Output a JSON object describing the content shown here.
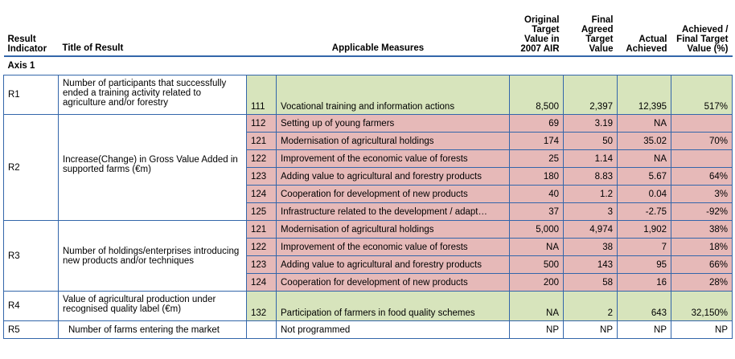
{
  "headers": {
    "result_indicator": "Result Indicator",
    "title_of_result": "Title of Result",
    "applicable_measures": "Applicable Measures",
    "original_target": "Original Target Value in 2007 AIR",
    "final_agreed": "Final Agreed Target Value",
    "actual_achieved": "Actual Achieved",
    "achieved_pct": "Achieved / Final Target Value (%)"
  },
  "axis_label": "Axis 1",
  "groups": [
    {
      "indicator": "R1",
      "title": "Number of participants that successfully ended a training activity related to agriculture and/or forestry",
      "rows": [
        {
          "code": "111",
          "measure": "Vocational training and information actions",
          "original": "8,500",
          "final": "2,397",
          "actual": "12,395",
          "pct": "517%"
        }
      ]
    },
    {
      "indicator": "R2",
      "title": "Increase(Change) in Gross Value Added in supported farms (€m)",
      "rows": [
        {
          "code": "112",
          "measure": "Setting up of young farmers",
          "original": "69",
          "final": "3.19",
          "actual": "NA",
          "pct": ""
        },
        {
          "code": "121",
          "measure": "Modernisation of agricultural holdings",
          "original": "174",
          "final": "50",
          "actual": "35.02",
          "pct": "70%"
        },
        {
          "code": "122",
          "measure": "Improvement of the economic value of forests",
          "original": "25",
          "final": "1.14",
          "actual": "NA",
          "pct": ""
        },
        {
          "code": "123",
          "measure": "Adding value to agricultural and forestry products",
          "original": "180",
          "final": "8.83",
          "actual": "5.67",
          "pct": "64%"
        },
        {
          "code": "124",
          "measure": "Cooperation for development of new products",
          "original": "40",
          "final": "1.2",
          "actual": "0.04",
          "pct": "3%"
        },
        {
          "code": "125",
          "measure": "Infrastructure related to the development / adapt…",
          "original": "37",
          "final": "3",
          "actual": "-2.75",
          "pct": "-92%"
        }
      ]
    },
    {
      "indicator": "R3",
      "title": "Number of holdings/enterprises introducing new products and/or techniques",
      "rows": [
        {
          "code": "121",
          "measure": "Modernisation of agricultural holdings",
          "original": "5,000",
          "final": "4,974",
          "actual": "1,902",
          "pct": "38%"
        },
        {
          "code": "122",
          "measure": "Improvement of the economic value of forests",
          "original": "NA",
          "final": "38",
          "actual": "7",
          "pct": "18%"
        },
        {
          "code": "123",
          "measure": "Adding value to agricultural and forestry products",
          "original": "500",
          "final": "143",
          "actual": "95",
          "pct": "66%"
        },
        {
          "code": "124",
          "measure": "Cooperation for development of new products",
          "original": "200",
          "final": "58",
          "actual": "16",
          "pct": "28%"
        }
      ]
    },
    {
      "indicator": "R4",
      "title": "Value of agricultural production under recognised quality label (€m)",
      "rows": [
        {
          "code": "132",
          "measure": "Participation of farmers in food quality schemes",
          "original": "NA",
          "final": "2",
          "actual": "643",
          "pct": "32,150%"
        }
      ]
    },
    {
      "indicator": "R5",
      "title": "Number of farms entering the market",
      "rows": [
        {
          "code": "",
          "measure": "Not programmed",
          "original": "NP",
          "final": "NP",
          "actual": "NP",
          "pct": "NP"
        }
      ]
    }
  ],
  "colors": {
    "green_fill": "#d7e4bc",
    "pink_fill": "#e6b9b8",
    "grid_line": "#3366aa"
  }
}
